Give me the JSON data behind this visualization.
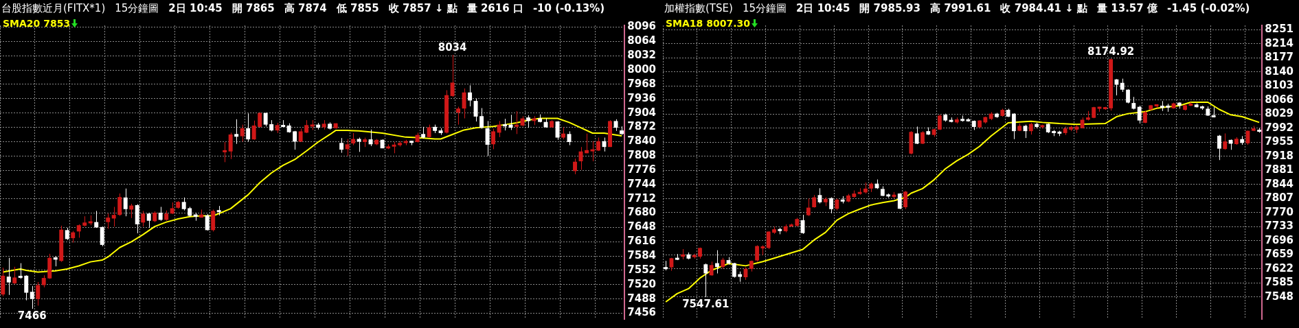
{
  "chart_data": [
    {
      "type": "candlestick",
      "title": "台股指數近月(FITX*1)",
      "subtitle": "15分鐘圖",
      "annotations": [
        "2日 10:45",
        "開 7865",
        "高 7874",
        "低 7855",
        "收 7857 ↓ 點",
        "量 2616 口",
        "-10 (-0.13%)",
        {
          "text": "8034",
          "y": 8034
        },
        {
          "text": "7466",
          "y": 7466
        }
      ],
      "categories": [
        null,
        null,
        null,
        null,
        null,
        null,
        null,
        null,
        null,
        null,
        null,
        null,
        null,
        null,
        null,
        null,
        null,
        null,
        null,
        null,
        null,
        null,
        null,
        null,
        null,
        null,
        null,
        null,
        null,
        null,
        null,
        null,
        null,
        null,
        null,
        null,
        null,
        null,
        null,
        null,
        null,
        null,
        null,
        null,
        null,
        null,
        null,
        null,
        null,
        null,
        null,
        null,
        null,
        null,
        null,
        null,
        null,
        null,
        null,
        null,
        null,
        null,
        null,
        null,
        null,
        null,
        null,
        null,
        null,
        null,
        null,
        null,
        null,
        null,
        null,
        null,
        null,
        null,
        null,
        null,
        null,
        null,
        null,
        null,
        null,
        null,
        null,
        null,
        null,
        null,
        null,
        null,
        null,
        null,
        null,
        null,
        null,
        null,
        null,
        null,
        null,
        null,
        null,
        null,
        null,
        null,
        null
      ],
      "ohlc": [
        [
          7498,
          7558,
          7494,
          7540
        ],
        [
          7538,
          7580,
          7497,
          7525
        ],
        [
          7523,
          7560,
          7521,
          7536
        ],
        [
          7539,
          7568,
          7533,
          7536
        ],
        [
          7540,
          7541,
          7485,
          7502
        ],
        [
          7504,
          7517,
          7466,
          7488
        ],
        [
          7488,
          7526,
          7473,
          7519
        ],
        [
          7519,
          7541,
          7514,
          7535
        ],
        [
          7534,
          7589,
          7533,
          7580
        ],
        [
          7581,
          7584,
          7561,
          7576
        ],
        [
          7573,
          7652,
          7571,
          7643
        ],
        [
          7642,
          7647,
          7620,
          7622
        ],
        [
          7624,
          7640,
          7614,
          7637
        ],
        [
          7639,
          7655,
          7625,
          7653
        ],
        [
          7652,
          7673,
          7650,
          7659
        ],
        [
          7658,
          7675,
          7653,
          7661
        ],
        [
          7660,
          7685,
          7647,
          7648
        ],
        [
          7649,
          7650,
          7606,
          7609
        ],
        [
          7660,
          7679,
          7645,
          7670
        ],
        [
          7668,
          7694,
          7650,
          7676
        ],
        [
          7676,
          7724,
          7674,
          7716
        ],
        [
          7715,
          7735,
          7673,
          7689
        ],
        [
          7688,
          7701,
          7669,
          7697
        ],
        [
          7698,
          7700,
          7635,
          7655
        ],
        [
          7659,
          7685,
          7650,
          7679
        ],
        [
          7679,
          7681,
          7647,
          7663
        ],
        [
          7662,
          7684,
          7660,
          7681
        ],
        [
          7681,
          7694,
          7663,
          7665
        ],
        [
          7665,
          7686,
          7663,
          7679
        ],
        [
          7679,
          7704,
          7678,
          7691
        ],
        [
          7692,
          7707,
          7690,
          7705
        ],
        [
          7705,
          7715,
          7686,
          7689
        ],
        [
          7691,
          7694,
          7672,
          7674
        ],
        [
          7677,
          7681,
          7663,
          7672
        ],
        [
          7670,
          7688,
          7670,
          7677
        ],
        [
          7675,
          7678,
          7641,
          7642
        ],
        [
          7642,
          7688,
          7639,
          7685
        ],
        [
          7686,
          7696,
          7675,
          7683
        ],
        [
          7817,
          7839,
          7794,
          7820
        ],
        [
          7818,
          7860,
          7801,
          7856
        ],
        [
          7857,
          7890,
          7835,
          7851
        ],
        [
          7852,
          7878,
          7840,
          7870
        ],
        [
          7870,
          7903,
          7840,
          7845
        ],
        [
          7845,
          7887,
          7844,
          7876
        ],
        [
          7873,
          7906,
          7871,
          7904
        ],
        [
          7904,
          7905,
          7874,
          7878
        ],
        [
          7879,
          7888,
          7863,
          7865
        ],
        [
          7865,
          7882,
          7859,
          7877
        ],
        [
          7876,
          7888,
          7873,
          7874
        ],
        [
          7876,
          7881,
          7860,
          7861
        ],
        [
          7863,
          7864,
          7822,
          7840
        ],
        [
          7840,
          7869,
          7839,
          7863
        ],
        [
          7860,
          7888,
          7859,
          7877
        ],
        [
          7875,
          7888,
          7866,
          7877
        ],
        [
          7878,
          7882,
          7867,
          7871
        ],
        [
          7872,
          7888,
          7867,
          7880
        ],
        [
          7880,
          7883,
          7867,
          7869
        ],
        [
          7870,
          7881,
          7869,
          7881
        ],
        [
          7837,
          7848,
          7815,
          7822
        ],
        [
          7823,
          7846,
          7808,
          7834
        ],
        [
          7836,
          7859,
          7832,
          7846
        ],
        [
          7846,
          7849,
          7817,
          7840
        ],
        [
          7839,
          7849,
          7828,
          7845
        ],
        [
          7845,
          7867,
          7830,
          7834
        ],
        [
          7834,
          7846,
          7832,
          7844
        ],
        [
          7844,
          7845,
          7825,
          7825
        ],
        [
          7825,
          7834,
          7823,
          7829
        ],
        [
          7829,
          7839,
          7814,
          7833
        ],
        [
          7832,
          7841,
          7829,
          7837
        ],
        [
          7837,
          7844,
          7832,
          7841
        ],
        [
          7840,
          7842,
          7832,
          7839
        ],
        [
          7839,
          7860,
          7838,
          7855
        ],
        [
          7857,
          7873,
          7847,
          7849
        ],
        [
          7850,
          7878,
          7849,
          7872
        ],
        [
          7873,
          7878,
          7859,
          7864
        ],
        [
          7865,
          7870,
          7855,
          7859
        ],
        [
          7860,
          7955,
          7858,
          7944
        ],
        [
          7942,
          8034,
          7940,
          7972
        ],
        [
          7905,
          7918,
          7878,
          7914
        ],
        [
          7914,
          7959,
          7892,
          7950
        ],
        [
          7950,
          7966,
          7919,
          7932
        ],
        [
          7931,
          7936,
          7885,
          7896
        ],
        [
          7897,
          7915,
          7869,
          7871
        ],
        [
          7870,
          7886,
          7808,
          7833
        ],
        [
          7834,
          7869,
          7823,
          7863
        ],
        [
          7860,
          7886,
          7850,
          7878
        ],
        [
          7877,
          7891,
          7865,
          7876
        ],
        [
          7878,
          7900,
          7866,
          7871
        ],
        [
          7874,
          7908,
          7857,
          7877
        ],
        [
          7876,
          7897,
          7874,
          7892
        ],
        [
          7894,
          7899,
          7871,
          7886
        ],
        [
          7886,
          7897,
          7877,
          7892
        ],
        [
          7892,
          7901,
          7883,
          7884
        ],
        [
          7884,
          7892,
          7871,
          7872
        ],
        [
          7872,
          7888,
          7871,
          7886
        ],
        [
          7885,
          7886,
          7844,
          7849
        ],
        [
          7849,
          7872,
          7845,
          7858
        ],
        [
          7857,
          7863,
          7832,
          7839
        ],
        [
          7774,
          7802,
          7767,
          7795
        ],
        [
          7796,
          7828,
          7777,
          7818
        ],
        [
          7814,
          7858,
          7814,
          7821
        ],
        [
          7819,
          7841,
          7796,
          7822
        ],
        [
          7820,
          7849,
          7819,
          7841
        ],
        [
          7841,
          7849,
          7818,
          7828
        ],
        [
          7828,
          7888,
          7828,
          7886
        ],
        [
          7886,
          7890,
          7864,
          7871
        ],
        [
          7865,
          7874,
          7855,
          7857
        ]
      ],
      "series": [
        {
          "type": "line",
          "name": "SMA20 7853",
          "color": "#ffff00",
          "values": [
            7548,
            null,
            null,
            7555,
            7552,
            null,
            7548,
            null,
            7550,
            7551,
            null,
            7555,
            null,
            7562,
            null,
            7571,
            null,
            7575,
            7582,
            null,
            7603,
            null,
            7616,
            null,
            7632,
            null,
            7650,
            null,
            7660,
            null,
            7667,
            null,
            7672,
            null,
            7674,
            null,
            7674,
            7679,
            null,
            7690,
            null,
            null,
            7721,
            null,
            7748,
            null,
            7770,
            null,
            7787,
            null,
            7800,
            null,
            7819,
            null,
            7839,
            null,
            7856,
            7865,
            null,
            7865,
            null,
            7864,
            null,
            null,
            null,
            7859,
            null,
            null,
            null,
            7850,
            null,
            7849,
            null,
            null,
            7846,
            7846,
            null,
            7856,
            null,
            7866,
            null,
            7871,
            null,
            null,
            7874,
            null,
            7878,
            null,
            7882,
            null,
            7888,
            null,
            7892,
            null,
            null,
            7892,
            null,
            7883,
            null,
            7871,
            null,
            7859,
            null,
            7859,
            null,
            null,
            7853
          ]
        }
      ],
      "ylim": [
        7443,
        8100
      ],
      "yticks": [
        7456,
        7488,
        7520,
        7552,
        7584,
        7616,
        7648,
        7680,
        7712,
        7744,
        7776,
        7808,
        7840,
        7872,
        7904,
        7936,
        7968,
        8000,
        8032,
        8064,
        8096
      ],
      "grid": true,
      "legend": "top left",
      "tick_labels": "y"
    },
    {
      "type": "candlestick",
      "title": "加權指數(TSE)",
      "subtitle": "15分鐘圖",
      "annotations": [
        "2日 10:45",
        "開 7985.93",
        "高 7991.61",
        "收 7984.41 ↓ 點",
        "量 13.57 億",
        "-1.45 (-0.02%)",
        {
          "text": "8174.92",
          "y": 8174.92
        },
        {
          "text": "7547.61",
          "y": 7547.61
        }
      ],
      "categories": [
        null,
        null,
        null,
        null,
        null,
        null,
        null,
        null,
        null,
        null,
        null,
        null,
        null,
        null,
        null,
        null,
        null,
        null,
        null,
        null,
        null,
        null,
        null,
        null,
        null,
        null,
        null,
        null,
        null,
        null,
        null,
        null,
        null,
        null,
        null,
        null,
        null,
        null,
        null,
        null,
        null,
        null,
        null,
        null,
        null,
        null,
        null,
        null,
        null,
        null,
        null,
        null,
        null,
        null,
        null,
        null,
        null,
        null,
        null,
        null,
        null,
        null,
        null,
        null,
        null,
        null,
        null,
        null,
        null,
        null,
        null,
        null,
        null,
        null,
        null,
        null,
        null,
        null,
        null,
        null,
        null,
        null,
        null,
        null,
        null,
        null,
        null,
        null,
        null,
        null,
        null,
        null,
        null,
        null,
        null,
        null,
        null,
        null,
        null,
        null,
        null,
        null,
        null,
        null,
        null
      ],
      "ohlc": [
        [
          7625,
          7643,
          7618,
          7623
        ],
        [
          7626,
          7651,
          7617,
          7650
        ],
        [
          7650,
          7661,
          7645,
          7647
        ],
        [
          7654,
          7674,
          7647,
          7660
        ],
        [
          7660,
          7665,
          7647,
          7649
        ],
        [
          7654,
          7662,
          7649,
          7657
        ],
        [
          7654,
          7678,
          7649,
          7677
        ],
        [
          7634,
          7636,
          7547.61,
          7610
        ],
        [
          7605,
          7641,
          7604,
          7632
        ],
        [
          7637,
          7671,
          7610,
          7627
        ],
        [
          7627,
          7651,
          7622,
          7646
        ],
        [
          7645,
          7653,
          7633,
          7636
        ],
        [
          7637,
          7638,
          7599,
          7601
        ],
        [
          7608,
          7615,
          7588,
          7601
        ],
        [
          7600,
          7626,
          7593,
          7622
        ],
        [
          7622,
          7644,
          7615,
          7643
        ],
        [
          7644,
          7684,
          7641,
          7682
        ],
        [
          7677,
          7684,
          7658,
          7680
        ],
        [
          7677,
          7721,
          7674,
          7720
        ],
        [
          7717,
          7733,
          7714,
          7726
        ],
        [
          7725,
          7730,
          7713,
          7723
        ],
        [
          7721,
          7739,
          7718,
          7734
        ],
        [
          7735,
          7741,
          7733,
          7737
        ],
        [
          7735,
          7756,
          7733,
          7753
        ],
        [
          7750,
          7764,
          7714,
          7716
        ],
        [
          7763,
          7807,
          7761,
          7783
        ],
        [
          7784,
          7816,
          7783,
          7810
        ],
        [
          7816,
          7834,
          7794,
          7797
        ],
        [
          7797,
          7810,
          7787,
          7806
        ],
        [
          7808,
          7810,
          7768,
          7779
        ],
        [
          7780,
          7807,
          7776,
          7804
        ],
        [
          7803,
          7813,
          7794,
          7800
        ],
        [
          7799,
          7819,
          7797,
          7815
        ],
        [
          7811,
          7828,
          7809,
          7820
        ],
        [
          7820,
          7834,
          7817,
          7823
        ],
        [
          7823,
          7849,
          7820,
          7833
        ],
        [
          7833,
          7849,
          7824,
          7846
        ],
        [
          7846,
          7857,
          7832,
          7834
        ],
        [
          7832,
          7839,
          7813,
          7814
        ],
        [
          7817,
          7820,
          7809,
          7813
        ],
        [
          7811,
          7824,
          7807,
          7817
        ],
        [
          7820,
          7821,
          7779,
          7780
        ],
        [
          7784,
          7827,
          7779,
          7825
        ],
        [
          7925,
          7984,
          7923,
          7982
        ],
        [
          7978,
          7996,
          7950,
          7951
        ],
        [
          7951,
          7984,
          7950,
          7981
        ],
        [
          7984,
          7994,
          7974,
          7975
        ],
        [
          7974,
          7991,
          7969,
          7989
        ],
        [
          7988,
          8028,
          7987,
          8025
        ],
        [
          8027,
          8030,
          8009,
          8012
        ],
        [
          8012,
          8020,
          8007,
          8010
        ],
        [
          8007,
          8020,
          8004,
          8015
        ],
        [
          8015,
          8025,
          8009,
          8012
        ],
        [
          8013,
          8018,
          8009,
          8012
        ],
        [
          8011,
          8012,
          7987,
          7995
        ],
        [
          7994,
          8013,
          7994,
          8012
        ],
        [
          8007,
          8022,
          8004,
          8021
        ],
        [
          8016,
          8034,
          8013,
          8030
        ],
        [
          8030,
          8032,
          8019,
          8021
        ],
        [
          8024,
          8043,
          8022,
          8040
        ],
        [
          8040,
          8043,
          8021,
          8022
        ],
        [
          8030,
          8031,
          7963,
          7984
        ],
        [
          7985,
          8004,
          7984,
          7998
        ],
        [
          7998,
          8001,
          7966,
          7984
        ],
        [
          7984,
          8006,
          7975,
          8003
        ],
        [
          8003,
          8006,
          7992,
          7995
        ],
        [
          7996,
          8001,
          7991,
          7998
        ],
        [
          8003,
          8004,
          7979,
          7981
        ],
        [
          7984,
          7987,
          7971,
          7979
        ],
        [
          7981,
          7985,
          7971,
          7979
        ],
        [
          7979,
          7996,
          7974,
          7991
        ],
        [
          7988,
          7998,
          7984,
          7995
        ],
        [
          7988,
          8000,
          7979,
          7996
        ],
        [
          7992,
          8020,
          7991,
          8014
        ],
        [
          8014,
          8037,
          8012,
          8020
        ],
        [
          8019,
          8048,
          8018,
          8047
        ],
        [
          8044,
          8048,
          8035,
          8047
        ],
        [
          8043,
          8048,
          8040,
          8046
        ],
        [
          8044,
          8174.92,
          8038,
          8173
        ],
        [
          8120,
          8121,
          8078,
          8106
        ],
        [
          8111,
          8122,
          8087,
          8093
        ],
        [
          8093,
          8094,
          8057,
          8059
        ],
        [
          8058,
          8074,
          8041,
          8043
        ],
        [
          8048,
          8051,
          8004,
          8012
        ],
        [
          8006,
          8037,
          8005,
          8034
        ],
        [
          8041,
          8053,
          8038,
          8052
        ],
        [
          8051,
          8054,
          8045,
          8053
        ],
        [
          8051,
          8063,
          8037,
          8045
        ],
        [
          8050,
          8056,
          8035,
          8047
        ],
        [
          8044,
          8059,
          8043,
          8057
        ],
        [
          8059,
          8060,
          8043,
          8051
        ],
        [
          8040,
          8053,
          8038,
          8052
        ],
        [
          8051,
          8060,
          8050,
          8056
        ],
        [
          8054,
          8057,
          8046,
          8047
        ],
        [
          8049,
          8051,
          8040,
          8044
        ],
        [
          8043,
          8049,
          8024,
          8025
        ],
        [
          8025,
          8047,
          8020,
          8021
        ],
        [
          7972,
          7974,
          7908,
          7938
        ],
        [
          7937,
          7978,
          7935,
          7957
        ],
        [
          7961,
          7962,
          7935,
          7951
        ],
        [
          7950,
          7968,
          7948,
          7964
        ],
        [
          7963,
          7971,
          7948,
          7953
        ],
        [
          7952,
          7985,
          7948,
          7985
        ],
        [
          7985,
          7998,
          7984,
          7991
        ],
        [
          7985.93,
          7991.61,
          7980,
          7984.41
        ]
      ],
      "series": [
        {
          "type": "line",
          "name": "SMA18 8007.30",
          "color": "#ffff00",
          "values": [
            7535,
            null,
            7557,
            null,
            7570,
            null,
            7598,
            null,
            7618,
            null,
            null,
            7636,
            null,
            null,
            7630,
            null,
            null,
            7641,
            null,
            7650,
            null,
            null,
            7664,
            null,
            7673,
            null,
            7698,
            null,
            7718,
            null,
            7750,
            null,
            7767,
            null,
            7779,
            null,
            7790,
            null,
            7796,
            null,
            7801,
            null,
            7810,
            7821,
            null,
            7833,
            null,
            7856,
            null,
            7885,
            null,
            7906,
            null,
            7923,
            null,
            7944,
            null,
            7971,
            null,
            null,
            8006,
            null,
            8008,
            null,
            8010,
            null,
            8007,
            null,
            null,
            8004,
            null,
            null,
            8002,
            null,
            null,
            8003,
            null,
            8004,
            null,
            8022,
            null,
            8030,
            null,
            null,
            8035,
            null,
            8044,
            null,
            8048,
            null,
            8051,
            null,
            8060,
            null,
            null,
            8060,
            null,
            8041,
            null,
            8027,
            null,
            8022,
            null,
            null,
            8007
          ]
        }
      ],
      "ylim": [
        7490,
        8262
      ],
      "yticks": [
        7548,
        7585,
        7622,
        7659,
        7696,
        7733,
        7770,
        7807,
        7844,
        7881,
        7918,
        7955,
        7992,
        8029,
        8066,
        8103,
        8140,
        8177,
        8214,
        8251
      ],
      "grid": true,
      "legend": "top left",
      "tick_labels": "y"
    }
  ]
}
